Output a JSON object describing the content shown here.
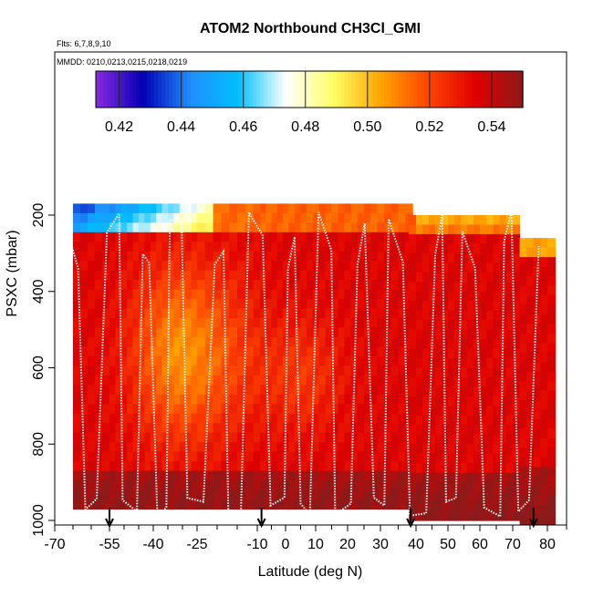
{
  "chart_data": {
    "type": "heatmap",
    "title": "ATOM2 Northbound CH3Cl_GMI",
    "annotations": {
      "flights": "Flts: 6,7,8,9,10",
      "dates": "MMDD: 0210,0213,0215,0218,0219"
    },
    "xlabel": "Latitude (deg N)",
    "ylabel": "PSXC (mbar)",
    "xlim": [
      -70,
      85
    ],
    "ylim": [
      1030,
      80
    ],
    "x_ticks": [
      -70,
      -55,
      -40,
      -25,
      -10,
      0,
      10,
      20,
      30,
      40,
      50,
      60,
      70,
      80
    ],
    "y_ticks": [
      200,
      400,
      600,
      800,
      1000
    ],
    "colorbar": {
      "min": 0.4125,
      "max": 0.55,
      "ticks": [
        0.42,
        0.44,
        0.46,
        0.48,
        0.5,
        0.52,
        0.54
      ],
      "tick_labels": [
        "0.42",
        "0.44",
        "0.46",
        "0.48",
        "0.50",
        "0.52",
        "0.54"
      ],
      "colors": [
        "#8a2be2",
        "#0000b4",
        "#1e90ff",
        "#00bfff",
        "#ffffff",
        "#ffff66",
        "#ffa500",
        "#ff4500",
        "#e00000",
        "#8b1a1a"
      ]
    },
    "description": "Curtain of CH3Cl mixing ratio (ppbv) vs latitude and pressure; values ~0.50-0.55, with lower values (~0.42-0.47) near 180-230 mbar south of -40.",
    "curtain_regions": [
      {
        "lat_range": [
          -65,
          38
        ],
        "p_top": 170,
        "p_bottom": 960
      },
      {
        "lat_range": [
          38,
          72
        ],
        "p_top": 200,
        "p_bottom": 1000
      },
      {
        "lat_range": [
          72,
          82
        ],
        "p_top": 260,
        "p_bottom": 1000
      }
    ],
    "profile_markers": [
      -55,
      -8.5,
      38.5,
      76
    ]
  }
}
